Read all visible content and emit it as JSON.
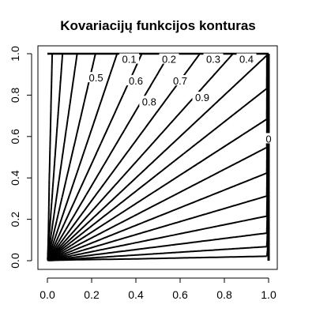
{
  "chart_data": {
    "type": "contour",
    "title": "Kovariacijų funkcijos konturas",
    "xlabel": "",
    "ylabel": "",
    "xlim": [
      0,
      1
    ],
    "ylim": [
      0,
      1
    ],
    "x_ticks": [
      "0.0",
      "0.2",
      "0.4",
      "0.6",
      "0.8",
      "1.0"
    ],
    "y_ticks": [
      "0.0",
      "0.2",
      "0.4",
      "0.6",
      "0.8",
      "1.0"
    ],
    "grid": false,
    "levels": [
      0.1,
      0.2,
      0.3,
      0.4,
      0.5,
      0.6,
      0.7,
      0.8,
      0.9,
      1
    ],
    "contour_labels": [
      {
        "text": "0.1",
        "x": 0.37,
        "y": 0.975
      },
      {
        "text": "0.2",
        "x": 0.55,
        "y": 0.975
      },
      {
        "text": "0.3",
        "x": 0.75,
        "y": 0.975
      },
      {
        "text": "0.4",
        "x": 0.9,
        "y": 0.975
      },
      {
        "text": "0.5",
        "x": 0.22,
        "y": 0.885
      },
      {
        "text": "0.6",
        "x": 0.4,
        "y": 0.87
      },
      {
        "text": "0.7",
        "x": 0.6,
        "y": 0.87
      },
      {
        "text": "0.8",
        "x": 0.46,
        "y": 0.77
      },
      {
        "text": "0.9",
        "x": 0.7,
        "y": 0.79
      },
      {
        "text": "0",
        "x": 1.0,
        "y": 0.59
      }
    ]
  }
}
